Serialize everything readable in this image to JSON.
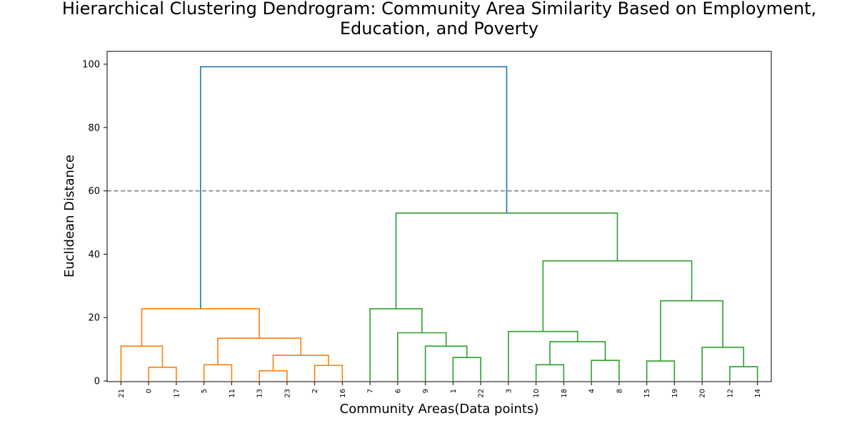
{
  "chart_data": {
    "type": "dendrogram",
    "title_line1": "Hierarchical Clustering Dendrogram: Community Area Similarity Based on Employment,",
    "title_line2": "Education, and Poverty",
    "xlabel": "Community Areas(Data points)",
    "ylabel": "Euclidean Distance",
    "ylim": [
      0,
      104
    ],
    "yticks": [
      0,
      20,
      40,
      60,
      80,
      100
    ],
    "leaves": [
      "21",
      "0",
      "17",
      "5",
      "11",
      "13",
      "23",
      "2",
      "16",
      "7",
      "6",
      "9",
      "1",
      "22",
      "3",
      "10",
      "18",
      "4",
      "8",
      "15",
      "19",
      "20",
      "12",
      "14"
    ],
    "threshold": {
      "value": 60,
      "color": "#808080",
      "style": "dashed"
    },
    "colors": {
      "cluster_1": "#ff7f0e",
      "cluster_2": "#2ca02c",
      "above_threshold": "#1f77b4"
    },
    "merges": [
      {
        "left": "leaf:0",
        "right": "leaf:17",
        "height": 4.3,
        "color": "cluster_1"
      },
      {
        "left": "leaf:21",
        "right": "m0",
        "height": 11.0,
        "color": "cluster_1"
      },
      {
        "left": "leaf:5",
        "right": "leaf:11",
        "height": 5.1,
        "color": "cluster_1"
      },
      {
        "left": "leaf:13",
        "right": "leaf:23",
        "height": 3.2,
        "color": "cluster_1"
      },
      {
        "left": "leaf:2",
        "right": "leaf:16",
        "height": 4.9,
        "color": "cluster_1"
      },
      {
        "left": "m3",
        "right": "m4",
        "height": 8.1,
        "color": "cluster_1"
      },
      {
        "left": "m2",
        "right": "m5",
        "height": 13.5,
        "color": "cluster_1"
      },
      {
        "left": "m1",
        "right": "m6",
        "height": 22.8,
        "color": "cluster_1"
      },
      {
        "left": "leaf:1",
        "right": "leaf:22",
        "height": 7.4,
        "color": "cluster_2"
      },
      {
        "left": "leaf:9",
        "right": "m8",
        "height": 11.0,
        "color": "cluster_2"
      },
      {
        "left": "leaf:6",
        "right": "m9",
        "height": 15.2,
        "color": "cluster_2"
      },
      {
        "left": "leaf:7",
        "right": "m10",
        "height": 22.8,
        "color": "cluster_2"
      },
      {
        "left": "leaf:10",
        "right": "leaf:18",
        "height": 5.1,
        "color": "cluster_2"
      },
      {
        "left": "leaf:4",
        "right": "leaf:8",
        "height": 6.5,
        "color": "cluster_2"
      },
      {
        "left": "m12",
        "right": "m13",
        "height": 12.4,
        "color": "cluster_2"
      },
      {
        "left": "leaf:3",
        "right": "m14",
        "height": 15.6,
        "color": "cluster_2"
      },
      {
        "left": "leaf:15",
        "right": "leaf:19",
        "height": 6.3,
        "color": "cluster_2"
      },
      {
        "left": "leaf:12",
        "right": "leaf:14",
        "height": 4.5,
        "color": "cluster_2"
      },
      {
        "left": "leaf:20",
        "right": "m17",
        "height": 10.6,
        "color": "cluster_2"
      },
      {
        "left": "m16",
        "right": "m18",
        "height": 25.3,
        "color": "cluster_2"
      },
      {
        "left": "m15",
        "right": "m19",
        "height": 37.9,
        "color": "cluster_2"
      },
      {
        "left": "m11",
        "right": "m20",
        "height": 53.0,
        "color": "cluster_2"
      },
      {
        "left": "m7",
        "right": "m21",
        "height": 99.2,
        "color": "above_threshold"
      }
    ]
  }
}
